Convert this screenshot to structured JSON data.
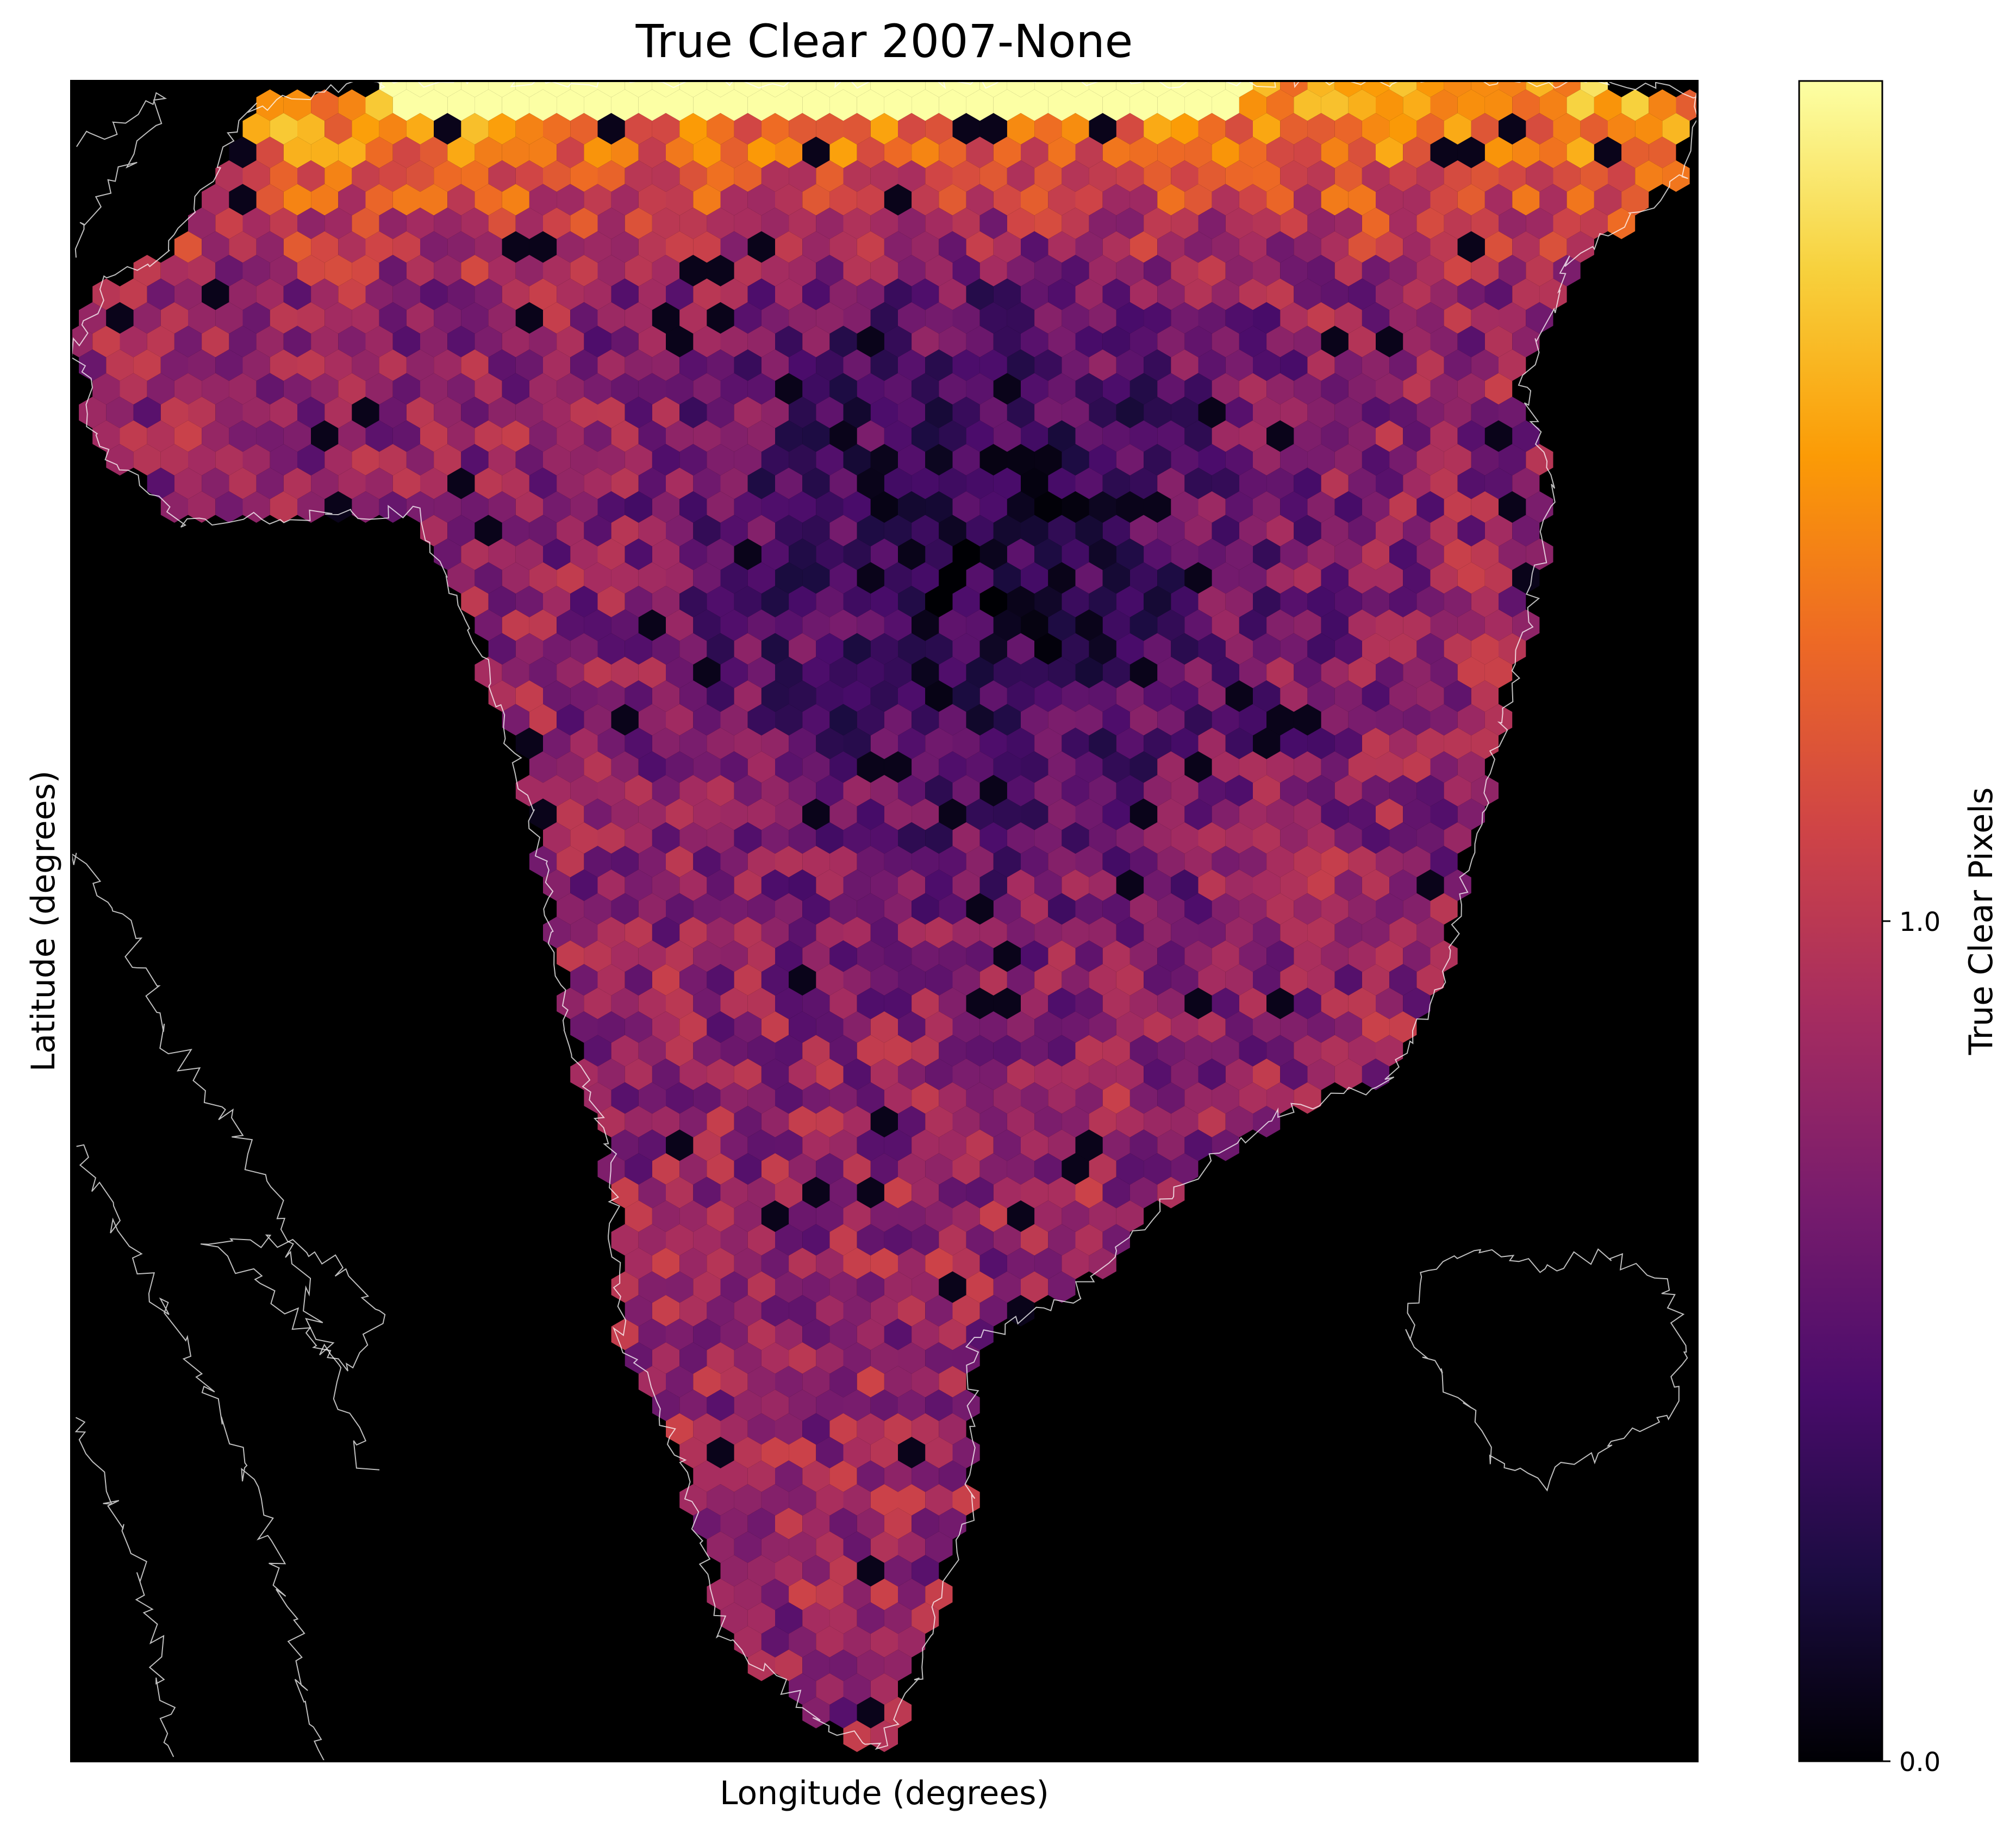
{
  "chart_data": {
    "type": "heatmap",
    "subtype": "hexbin map",
    "title": "True Clear 2007-None",
    "xlabel": "Longitude (degrees)",
    "ylabel": "Latitude (degrees)",
    "axis_ticks_shown": false,
    "background_color": "#000000",
    "coastline_color": "#ffffff",
    "colormap": "inferno",
    "colorbar": {
      "label": "True Clear Pixels",
      "ticks": [
        {
          "value": 0.0,
          "label": "0.0"
        },
        {
          "value": 1.0,
          "label": "1.0"
        }
      ],
      "range": [
        0.0,
        2.0
      ],
      "placement": "right"
    },
    "colors": {
      "stops": [
        "#000004",
        "#1b0c41",
        "#4a0c6b",
        "#781c6d",
        "#a52c60",
        "#cf4446",
        "#ed6925",
        "#fb9b06",
        "#f7d13d",
        "#fcffa4"
      ]
    }
  }
}
